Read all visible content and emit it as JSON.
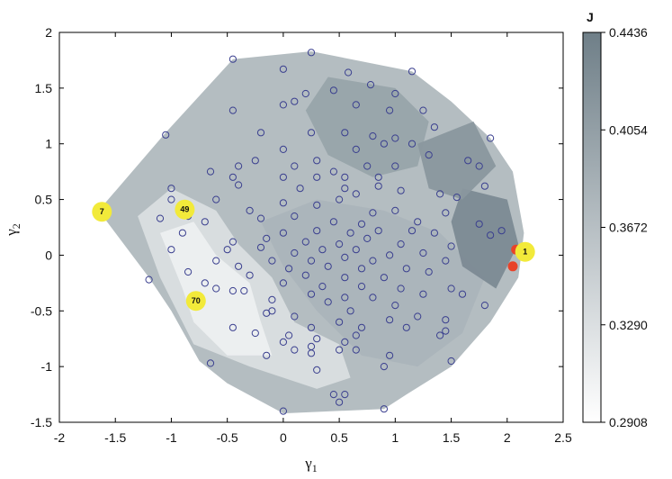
{
  "chart_data": {
    "type": "scatter",
    "xlabel": "γ1",
    "ylabel": "γ2",
    "xlim": [
      -2,
      2.5
    ],
    "ylim": [
      -1.5,
      2
    ],
    "x_ticks": [
      "-2",
      "-1.5",
      "-1",
      "-0.5",
      "0",
      "0.5",
      "1",
      "1.5",
      "2",
      "2.5"
    ],
    "y_ticks": [
      "-1.5",
      "-1",
      "-0.5",
      "0",
      "0.5",
      "1",
      "1.5",
      "2"
    ],
    "colorbar": {
      "label": "J",
      "range": [
        0.2908,
        0.4436
      ],
      "ticks": [
        "0.2908",
        "0.3290",
        "0.3672",
        "0.4054",
        "0.4436"
      ],
      "color_low": "#ffffff",
      "color_high": "#6f7f88"
    },
    "marker_color": "#3a3f8f",
    "highlight_color": "#e8432a",
    "badge_color": "#f2ea3a",
    "hull": [
      [
        -1.65,
        0.4
      ],
      [
        -1.05,
        1.1
      ],
      [
        -0.45,
        1.76
      ],
      [
        0.25,
        1.83
      ],
      [
        1.15,
        1.65
      ],
      [
        1.5,
        1.38
      ],
      [
        1.85,
        1.05
      ],
      [
        2.05,
        0.75
      ],
      [
        2.15,
        0.2
      ],
      [
        2.1,
        -0.2
      ],
      [
        1.85,
        -0.6
      ],
      [
        1.5,
        -1.0
      ],
      [
        1.1,
        -1.25
      ],
      [
        0.9,
        -1.38
      ],
      [
        0.0,
        -1.42
      ],
      [
        -0.5,
        -1.15
      ],
      [
        -0.75,
        -0.95
      ],
      [
        -1.0,
        -0.5
      ],
      [
        -1.2,
        -0.2
      ]
    ],
    "bands": [
      {
        "level": 0.33,
        "poly": [
          [
            -1.3,
            0.35
          ],
          [
            -1.0,
            0.6
          ],
          [
            -0.6,
            0.4
          ],
          [
            -0.4,
            0.1
          ],
          [
            -0.1,
            -0.2
          ],
          [
            0.1,
            -0.6
          ],
          [
            0.5,
            -0.8
          ],
          [
            0.6,
            -1.1
          ],
          [
            0.3,
            -1.2
          ],
          [
            -0.3,
            -1.0
          ],
          [
            -0.8,
            -0.8
          ],
          [
            -1.1,
            -0.2
          ]
        ]
      },
      {
        "level": 0.31,
        "poly": [
          [
            -1.1,
            0.2
          ],
          [
            -0.8,
            0.3
          ],
          [
            -0.6,
            0.0
          ],
          [
            -0.3,
            -0.25
          ],
          [
            -0.2,
            -0.6
          ],
          [
            -0.1,
            -0.9
          ],
          [
            -0.5,
            -0.9
          ],
          [
            -0.8,
            -0.6
          ],
          [
            -0.9,
            -0.3
          ]
        ]
      },
      {
        "level": 0.38,
        "poly": [
          [
            -0.2,
            0.3
          ],
          [
            0.3,
            0.5
          ],
          [
            0.9,
            0.4
          ],
          [
            1.4,
            0.2
          ],
          [
            1.8,
            -0.2
          ],
          [
            1.6,
            -0.7
          ],
          [
            1.2,
            -1.0
          ],
          [
            0.7,
            -0.9
          ],
          [
            0.3,
            -0.5
          ],
          [
            0.0,
            -0.1
          ]
        ]
      },
      {
        "level": 0.4,
        "poly": [
          [
            0.4,
            1.6
          ],
          [
            1.0,
            1.5
          ],
          [
            1.3,
            1.2
          ],
          [
            1.2,
            0.8
          ],
          [
            0.8,
            0.7
          ],
          [
            0.4,
            0.9
          ],
          [
            0.2,
            1.3
          ]
        ]
      },
      {
        "level": 0.43,
        "poly": [
          [
            1.6,
            0.6
          ],
          [
            2.0,
            0.5
          ],
          [
            2.1,
            0.1
          ],
          [
            1.9,
            -0.3
          ],
          [
            1.6,
            -0.1
          ],
          [
            1.5,
            0.3
          ]
        ]
      },
      {
        "level": 0.415,
        "poly": [
          [
            1.2,
            1.0
          ],
          [
            1.7,
            1.2
          ],
          [
            1.9,
            0.8
          ],
          [
            1.6,
            0.5
          ],
          [
            1.3,
            0.6
          ]
        ]
      }
    ],
    "points": [
      {
        "x": -0.45,
        "y": 1.76
      },
      {
        "x": 0.25,
        "y": 1.82
      },
      {
        "x": 1.15,
        "y": 1.65
      },
      {
        "x": 0.0,
        "y": 1.67
      },
      {
        "x": 0.58,
        "y": 1.64
      },
      {
        "x": 0.78,
        "y": 1.53
      },
      {
        "x": 0.2,
        "y": 1.45
      },
      {
        "x": 0.45,
        "y": 1.48
      },
      {
        "x": 1.0,
        "y": 1.45
      },
      {
        "x": -0.45,
        "y": 1.3
      },
      {
        "x": 0.0,
        "y": 1.35
      },
      {
        "x": 0.1,
        "y": 1.38
      },
      {
        "x": 0.65,
        "y": 1.35
      },
      {
        "x": 0.95,
        "y": 1.3
      },
      {
        "x": 1.25,
        "y": 1.3
      },
      {
        "x": -1.05,
        "y": 1.08
      },
      {
        "x": -0.2,
        "y": 1.1
      },
      {
        "x": 0.25,
        "y": 1.1
      },
      {
        "x": 0.55,
        "y": 1.1
      },
      {
        "x": 0.8,
        "y": 1.07
      },
      {
        "x": 1.0,
        "y": 1.05
      },
      {
        "x": 1.35,
        "y": 1.15
      },
      {
        "x": 0.0,
        "y": 0.95
      },
      {
        "x": 0.3,
        "y": 0.85
      },
      {
        "x": 0.65,
        "y": 0.95
      },
      {
        "x": 0.9,
        "y": 1.0
      },
      {
        "x": 1.15,
        "y": 1.0
      },
      {
        "x": 1.85,
        "y": 1.05
      },
      {
        "x": -0.4,
        "y": 0.8
      },
      {
        "x": -0.25,
        "y": 0.85
      },
      {
        "x": 0.1,
        "y": 0.8
      },
      {
        "x": 0.45,
        "y": 0.75
      },
      {
        "x": 0.75,
        "y": 0.8
      },
      {
        "x": 1.0,
        "y": 0.8
      },
      {
        "x": 1.3,
        "y": 0.9
      },
      {
        "x": 1.65,
        "y": 0.85
      },
      {
        "x": 1.75,
        "y": 0.8
      },
      {
        "x": -0.65,
        "y": 0.75
      },
      {
        "x": -0.45,
        "y": 0.7
      },
      {
        "x": 0.0,
        "y": 0.7
      },
      {
        "x": 0.3,
        "y": 0.7
      },
      {
        "x": 0.55,
        "y": 0.7
      },
      {
        "x": 0.85,
        "y": 0.7
      },
      {
        "x": 1.8,
        "y": 0.62
      },
      {
        "x": -1.0,
        "y": 0.6
      },
      {
        "x": -0.4,
        "y": 0.63
      },
      {
        "x": 0.15,
        "y": 0.6
      },
      {
        "x": 0.55,
        "y": 0.6
      },
      {
        "x": 0.85,
        "y": 0.62
      },
      {
        "x": 1.05,
        "y": 0.58
      },
      {
        "x": 1.4,
        "y": 0.55
      },
      {
        "x": -1.0,
        "y": 0.5
      },
      {
        "x": -0.6,
        "y": 0.5
      },
      {
        "x": 0.5,
        "y": 0.5
      },
      {
        "x": 0.65,
        "y": 0.55
      },
      {
        "x": 1.55,
        "y": 0.52
      },
      {
        "x": -1.1,
        "y": 0.33
      },
      {
        "x": -0.85,
        "y": 0.35
      },
      {
        "x": -0.3,
        "y": 0.4
      },
      {
        "x": 0.0,
        "y": 0.47
      },
      {
        "x": 0.3,
        "y": 0.45
      },
      {
        "x": 0.8,
        "y": 0.38
      },
      {
        "x": 1.0,
        "y": 0.4
      },
      {
        "x": 1.45,
        "y": 0.38
      },
      {
        "x": -0.7,
        "y": 0.3
      },
      {
        "x": -0.2,
        "y": 0.33
      },
      {
        "x": 0.1,
        "y": 0.35
      },
      {
        "x": 0.45,
        "y": 0.3
      },
      {
        "x": 0.7,
        "y": 0.28
      },
      {
        "x": 1.2,
        "y": 0.3
      },
      {
        "x": 1.75,
        "y": 0.28
      },
      {
        "x": 1.95,
        "y": 0.22
      },
      {
        "x": -0.9,
        "y": 0.2
      },
      {
        "x": 0.0,
        "y": 0.2
      },
      {
        "x": 0.3,
        "y": 0.22
      },
      {
        "x": 0.6,
        "y": 0.2
      },
      {
        "x": 0.85,
        "y": 0.22
      },
      {
        "x": 1.15,
        "y": 0.22
      },
      {
        "x": 1.35,
        "y": 0.2
      },
      {
        "x": 1.85,
        "y": 0.18
      },
      {
        "x": -0.45,
        "y": 0.12
      },
      {
        "x": -0.15,
        "y": 0.15
      },
      {
        "x": 0.2,
        "y": 0.12
      },
      {
        "x": 0.5,
        "y": 0.1
      },
      {
        "x": 0.75,
        "y": 0.15
      },
      {
        "x": 1.05,
        "y": 0.1
      },
      {
        "x": 1.5,
        "y": 0.08
      },
      {
        "x": -1.0,
        "y": 0.05
      },
      {
        "x": -0.5,
        "y": 0.05
      },
      {
        "x": -0.2,
        "y": 0.07
      },
      {
        "x": 0.1,
        "y": 0.02
      },
      {
        "x": 0.35,
        "y": 0.05
      },
      {
        "x": 0.65,
        "y": 0.05
      },
      {
        "x": 0.95,
        "y": 0.0
      },
      {
        "x": 1.25,
        "y": 0.02
      },
      {
        "x": -0.6,
        "y": -0.05
      },
      {
        "x": -0.1,
        "y": -0.05
      },
      {
        "x": 0.25,
        "y": -0.05
      },
      {
        "x": 0.55,
        "y": -0.02
      },
      {
        "x": 0.8,
        "y": -0.05
      },
      {
        "x": 1.45,
        "y": -0.05
      },
      {
        "x": -0.4,
        "y": -0.1
      },
      {
        "x": 0.05,
        "y": -0.12
      },
      {
        "x": 0.4,
        "y": -0.1
      },
      {
        "x": 0.7,
        "y": -0.12
      },
      {
        "x": 1.1,
        "y": -0.12
      },
      {
        "x": -0.85,
        "y": -0.15
      },
      {
        "x": -0.3,
        "y": -0.18
      },
      {
        "x": 0.2,
        "y": -0.18
      },
      {
        "x": 0.55,
        "y": -0.2
      },
      {
        "x": 0.9,
        "y": -0.2
      },
      {
        "x": 1.3,
        "y": -0.15
      },
      {
        "x": -1.2,
        "y": -0.22
      },
      {
        "x": -0.7,
        "y": -0.25
      },
      {
        "x": 0.0,
        "y": -0.25
      },
      {
        "x": 0.35,
        "y": -0.28
      },
      {
        "x": 0.7,
        "y": -0.28
      },
      {
        "x": 1.05,
        "y": -0.3
      },
      {
        "x": 1.5,
        "y": -0.3
      },
      {
        "x": -0.6,
        "y": -0.3
      },
      {
        "x": -0.45,
        "y": -0.32
      },
      {
        "x": -0.35,
        "y": -0.32
      },
      {
        "x": 0.25,
        "y": -0.35
      },
      {
        "x": 0.55,
        "y": -0.38
      },
      {
        "x": 0.8,
        "y": -0.38
      },
      {
        "x": 1.25,
        "y": -0.35
      },
      {
        "x": 1.6,
        "y": -0.35
      },
      {
        "x": -0.1,
        "y": -0.4
      },
      {
        "x": 0.4,
        "y": -0.42
      },
      {
        "x": 1.0,
        "y": -0.45
      },
      {
        "x": 1.8,
        "y": -0.45
      },
      {
        "x": -0.1,
        "y": -0.5
      },
      {
        "x": 0.6,
        "y": -0.5
      },
      {
        "x": 1.2,
        "y": -0.55
      },
      {
        "x": -0.15,
        "y": -0.52
      },
      {
        "x": 0.1,
        "y": -0.55
      },
      {
        "x": 0.5,
        "y": -0.6
      },
      {
        "x": 0.95,
        "y": -0.58
      },
      {
        "x": 1.45,
        "y": -0.58
      },
      {
        "x": 0.25,
        "y": -0.65
      },
      {
        "x": 0.7,
        "y": -0.65
      },
      {
        "x": 1.1,
        "y": -0.65
      },
      {
        "x": -0.45,
        "y": -0.65
      },
      {
        "x": -0.25,
        "y": -0.7
      },
      {
        "x": 0.05,
        "y": -0.72
      },
      {
        "x": 0.3,
        "y": -0.75
      },
      {
        "x": 0.65,
        "y": -0.72
      },
      {
        "x": 1.45,
        "y": -0.68
      },
      {
        "x": 1.4,
        "y": -0.72
      },
      {
        "x": 0.55,
        "y": -0.78
      },
      {
        "x": 0.0,
        "y": -0.78
      },
      {
        "x": 0.25,
        "y": -0.82
      },
      {
        "x": 0.1,
        "y": -0.85
      },
      {
        "x": 0.5,
        "y": -0.85
      },
      {
        "x": 0.65,
        "y": -0.85
      },
      {
        "x": -0.15,
        "y": -0.9
      },
      {
        "x": 0.25,
        "y": -0.88
      },
      {
        "x": 0.95,
        "y": -0.9
      },
      {
        "x": 1.5,
        "y": -0.95
      },
      {
        "x": -0.65,
        "y": -0.97
      },
      {
        "x": 0.3,
        "y": -1.03
      },
      {
        "x": 0.9,
        "y": -1.0
      },
      {
        "x": 0.45,
        "y": -1.25
      },
      {
        "x": 0.55,
        "y": -1.25
      },
      {
        "x": 0.5,
        "y": -1.32
      },
      {
        "x": 0.0,
        "y": -1.4
      },
      {
        "x": 0.9,
        "y": -1.38
      }
    ],
    "highlighted_points": [
      {
        "x": 2.08,
        "y": 0.05
      },
      {
        "x": 2.05,
        "y": -0.1
      }
    ],
    "labeled_points": [
      {
        "label": "7",
        "x": -1.62,
        "y": 0.39
      },
      {
        "label": "49",
        "x": -0.88,
        "y": 0.41
      },
      {
        "label": "70",
        "x": -0.78,
        "y": -0.41
      },
      {
        "label": "1",
        "x": 2.16,
        "y": 0.03
      }
    ]
  }
}
